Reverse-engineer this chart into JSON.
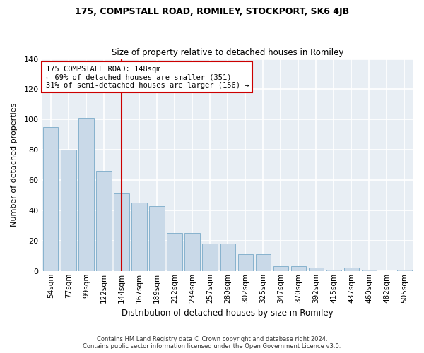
{
  "title": "175, COMPSTALL ROAD, ROMILEY, STOCKPORT, SK6 4JB",
  "subtitle": "Size of property relative to detached houses in Romiley",
  "xlabel": "Distribution of detached houses by size in Romiley",
  "ylabel": "Number of detached properties",
  "footer1": "Contains HM Land Registry data © Crown copyright and database right 2024.",
  "footer2": "Contains public sector information licensed under the Open Government Licence v3.0.",
  "categories": [
    "54sqm",
    "77sqm",
    "99sqm",
    "122sqm",
    "144sqm",
    "167sqm",
    "189sqm",
    "212sqm",
    "234sqm",
    "257sqm",
    "280sqm",
    "302sqm",
    "325sqm",
    "347sqm",
    "370sqm",
    "392sqm",
    "415sqm",
    "437sqm",
    "460sqm",
    "482sqm",
    "505sqm"
  ],
  "values": [
    95,
    80,
    101,
    66,
    51,
    45,
    43,
    25,
    25,
    18,
    18,
    11,
    11,
    3,
    3,
    2,
    1,
    2,
    1,
    0,
    1
  ],
  "bar_color": "#c9d9e8",
  "bar_edge_color": "#7aaac8",
  "property_label": "175 COMPSTALL ROAD: 148sqm",
  "stat1": "← 69% of detached houses are smaller (351)",
  "stat2": "31% of semi-detached houses are larger (156) →",
  "vline_color": "#cc0000",
  "annotation_box_color": "#cc0000",
  "ylim": [
    0,
    140
  ],
  "yticks": [
    0,
    20,
    40,
    60,
    80,
    100,
    120,
    140
  ],
  "plot_bg_color": "#e8eef4",
  "fig_bg_color": "#ffffff",
  "grid_color": "#ffffff",
  "vline_x_index": 4
}
